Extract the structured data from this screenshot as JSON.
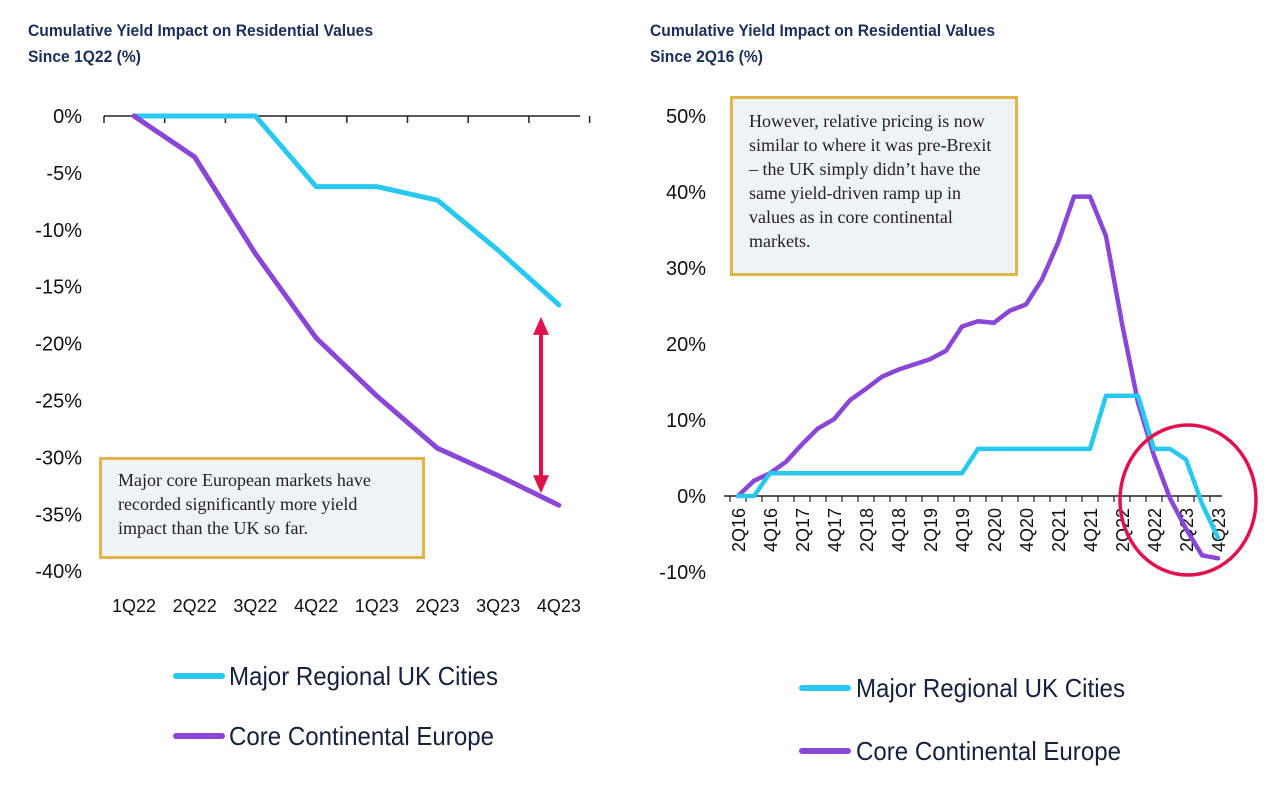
{
  "left": {
    "title_line1": "Cumulative Yield Impact on Residential Values",
    "title_line2": "Since 1Q22 (%)",
    "note": "Major core European markets have recorded significantly more yield impact than the UK so far."
  },
  "right": {
    "title_line1": "Cumulative Yield Impact on Residential Values",
    "title_line2": "Since 2Q16 (%)",
    "note": "However, relative pricing is now similar to where it was pre-Brexit – the UK simply didn’t have the same yield-driven ramp up in values as in core continental markets."
  },
  "colors": {
    "uk": "#29c8ef",
    "europe": "#8a46d6",
    "arrow": "#e0124e",
    "circle": "#e0124e",
    "axis": "#222222"
  },
  "chart_data": [
    {
      "type": "line",
      "title": "Cumulative Yield Impact on Residential Values",
      "subtitle": "Since 1Q22 (%)",
      "categories": [
        "1Q22",
        "2Q22",
        "3Q22",
        "4Q22",
        "1Q23",
        "2Q23",
        "3Q23",
        "4Q23"
      ],
      "y_tick_labels": [
        "0%",
        "-5%",
        "-10%",
        "-15%",
        "-20%",
        "-25%",
        "-30%",
        "-35%",
        "-40%"
      ],
      "ylim": [
        -40,
        0
      ],
      "series": [
        {
          "name": "Major Regional UK Cities",
          "values": [
            0,
            0,
            0,
            -6.2,
            -6.2,
            -7.4,
            -11.8,
            -16.6
          ]
        },
        {
          "name": "Core Continental Europe",
          "values": [
            0,
            -3.6,
            -12.1,
            -19.5,
            -24.6,
            -29.2,
            -31.6,
            -34.2
          ]
        }
      ],
      "legend": [
        "Major Regional UK Cities",
        "Core Continental Europe"
      ],
      "legend_position": "bottom",
      "annotation": "double-headed arrow between the two series at 4Q23"
    },
    {
      "type": "line",
      "title": "Cumulative Yield Impact on Residential Values",
      "subtitle": "Since 2Q16 (%)",
      "x": [
        "2Q16",
        "3Q16",
        "4Q16",
        "1Q17",
        "2Q17",
        "3Q17",
        "4Q17",
        "1Q18",
        "2Q18",
        "3Q18",
        "4Q18",
        "1Q19",
        "2Q19",
        "3Q19",
        "4Q19",
        "1Q20",
        "2Q20",
        "3Q20",
        "4Q20",
        "1Q21",
        "2Q21",
        "3Q21",
        "4Q21",
        "1Q22",
        "2Q22",
        "3Q22",
        "4Q22",
        "1Q23",
        "2Q23",
        "3Q23",
        "4Q23"
      ],
      "x_tick_labels": [
        "2Q16",
        "4Q16",
        "2Q17",
        "4Q17",
        "2Q18",
        "4Q18",
        "2Q19",
        "4Q19",
        "2Q20",
        "4Q20",
        "2Q21",
        "4Q21",
        "2Q22",
        "4Q22",
        "2Q23",
        "4Q23"
      ],
      "y_tick_labels": [
        "50%",
        "40%",
        "30%",
        "20%",
        "10%",
        "0%",
        "-10%"
      ],
      "ylim": [
        -10,
        50
      ],
      "series": [
        {
          "name": "Major Regional UK Cities",
          "values": [
            0,
            0,
            3,
            3,
            3,
            3,
            3,
            3,
            3,
            3,
            3,
            3,
            3,
            3,
            3,
            6.2,
            6.2,
            6.2,
            6.2,
            6.2,
            6.2,
            6.2,
            6.2,
            13.2,
            13.2,
            13.2,
            6.2,
            6.2,
            4.8,
            -1,
            -5.5
          ]
        },
        {
          "name": "Core Continental Europe",
          "values": [
            0,
            2.0,
            3.0,
            4.5,
            6.8,
            8.9,
            10.1,
            12.6,
            14.1,
            15.7,
            16.6,
            17.3,
            18.0,
            19.1,
            22.3,
            23.0,
            22.8,
            24.4,
            25.2,
            28.5,
            33.3,
            39.4,
            39.4,
            34.2,
            22.7,
            12.3,
            5.3,
            -0.3,
            -4.3,
            -7.8,
            -8.2
          ]
        }
      ],
      "legend": [
        "Major Regional UK Cities",
        "Core Continental Europe"
      ],
      "legend_position": "bottom",
      "annotation": "red circle highlighting 4Q22–4Q23"
    }
  ]
}
